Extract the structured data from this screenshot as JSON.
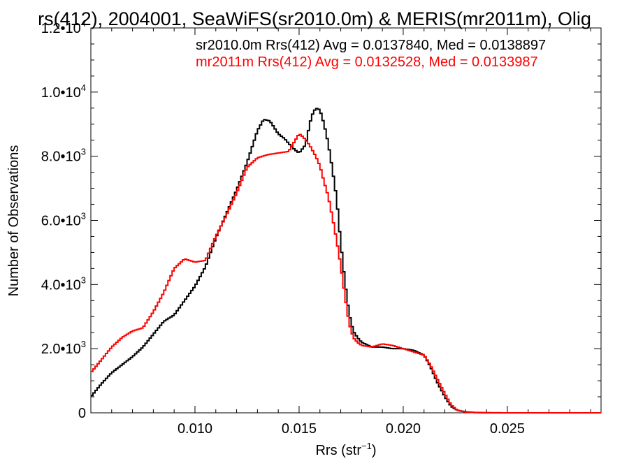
{
  "chart_data": {
    "type": "line",
    "title": "rs(412), 2004001, SeaWiFS(sr2010.0m) & MERIS(mr2011m), Olig",
    "xlabel": "Rrs (str",
    "xlabel_sup": "−1",
    "xlabel_close": ")",
    "ylabel": "Number of Observations",
    "xlim": [
      0.005,
      0.0295
    ],
    "ylim": [
      0,
      12000
    ],
    "grid": false,
    "x_ticks": [
      {
        "value": 0.01,
        "label": "0.010"
      },
      {
        "value": 0.015,
        "label": "0.015"
      },
      {
        "value": 0.02,
        "label": "0.020"
      },
      {
        "value": 0.025,
        "label": "0.025"
      }
    ],
    "y_ticks": [
      {
        "value": 0,
        "mantissa": "0",
        "exp": ""
      },
      {
        "value": 2000,
        "mantissa": "2.0•10",
        "exp": "3"
      },
      {
        "value": 4000,
        "mantissa": "4.0•10",
        "exp": "3"
      },
      {
        "value": 6000,
        "mantissa": "6.0•10",
        "exp": "3"
      },
      {
        "value": 8000,
        "mantissa": "8.0•10",
        "exp": "3"
      },
      {
        "value": 10000,
        "mantissa": "1.0•10",
        "exp": "4"
      },
      {
        "value": 12000,
        "mantissa": "1.2•10",
        "exp": "4"
      }
    ],
    "annotations": [
      {
        "text": "sr2010.0m Rrs(412) Avg = 0.0137840, Med = 0.0138897",
        "color": "#000000"
      },
      {
        "text": "mr2011m Rrs(412) Avg = 0.0132528, Med = 0.0133987",
        "color": "#ff0000"
      }
    ],
    "series": [
      {
        "color": "#000000",
        "x": [
          0.005,
          0.0055,
          0.006,
          0.0065,
          0.007,
          0.0075,
          0.008,
          0.0085,
          0.009,
          0.0095,
          0.01,
          0.0105,
          0.011,
          0.0115,
          0.012,
          0.0125,
          0.013,
          0.0133,
          0.0136,
          0.014,
          0.0143,
          0.0145,
          0.0148,
          0.015,
          0.0153,
          0.0156,
          0.0158,
          0.016,
          0.0162,
          0.0164,
          0.0166,
          0.0168,
          0.017,
          0.0172,
          0.0174,
          0.0176,
          0.0178,
          0.018,
          0.0185,
          0.019,
          0.0195,
          0.02,
          0.0205,
          0.021,
          0.0213,
          0.0216,
          0.022,
          0.0223,
          0.0226,
          0.023,
          0.0235,
          0.024,
          0.025,
          0.026,
          0.027,
          0.028,
          0.0295
        ],
        "y": [
          500,
          900,
          1250,
          1500,
          1750,
          2050,
          2450,
          2850,
          3050,
          3500,
          3950,
          4550,
          5450,
          6200,
          6950,
          7800,
          8800,
          9150,
          9100,
          8700,
          8550,
          8400,
          8200,
          8100,
          8350,
          9250,
          9500,
          9450,
          9000,
          8400,
          7600,
          6700,
          5300,
          4100,
          3100,
          2550,
          2350,
          2200,
          2050,
          2050,
          2000,
          2000,
          1950,
          1800,
          1450,
          1000,
          500,
          200,
          80,
          30,
          10,
          5,
          0,
          0,
          0,
          0,
          0
        ]
      },
      {
        "color": "#ff0000",
        "x": [
          0.005,
          0.0055,
          0.006,
          0.0065,
          0.007,
          0.0075,
          0.008,
          0.0085,
          0.009,
          0.0095,
          0.01,
          0.0105,
          0.011,
          0.0115,
          0.012,
          0.0125,
          0.013,
          0.0135,
          0.014,
          0.0145,
          0.015,
          0.0152,
          0.0155,
          0.0158,
          0.016,
          0.0162,
          0.0164,
          0.0166,
          0.0168,
          0.017,
          0.0172,
          0.0174,
          0.0176,
          0.0178,
          0.018,
          0.0185,
          0.019,
          0.0195,
          0.02,
          0.0205,
          0.021,
          0.0213,
          0.0216,
          0.022,
          0.0223,
          0.0226,
          0.023,
          0.0235,
          0.024,
          0.025,
          0.026,
          0.027,
          0.028,
          0.0295
        ],
        "y": [
          1250,
          1650,
          2050,
          2350,
          2550,
          2650,
          3150,
          3750,
          4500,
          4800,
          4700,
          4750,
          5500,
          6150,
          6850,
          7650,
          7950,
          8050,
          8100,
          8150,
          8700,
          8600,
          8350,
          8000,
          7700,
          7200,
          6750,
          6100,
          5400,
          4600,
          3650,
          2800,
          2350,
          2200,
          2100,
          2050,
          2150,
          2100,
          2000,
          1900,
          1800,
          1500,
          1100,
          600,
          250,
          80,
          20,
          5,
          0,
          0,
          0,
          0,
          0,
          0
        ]
      }
    ]
  }
}
